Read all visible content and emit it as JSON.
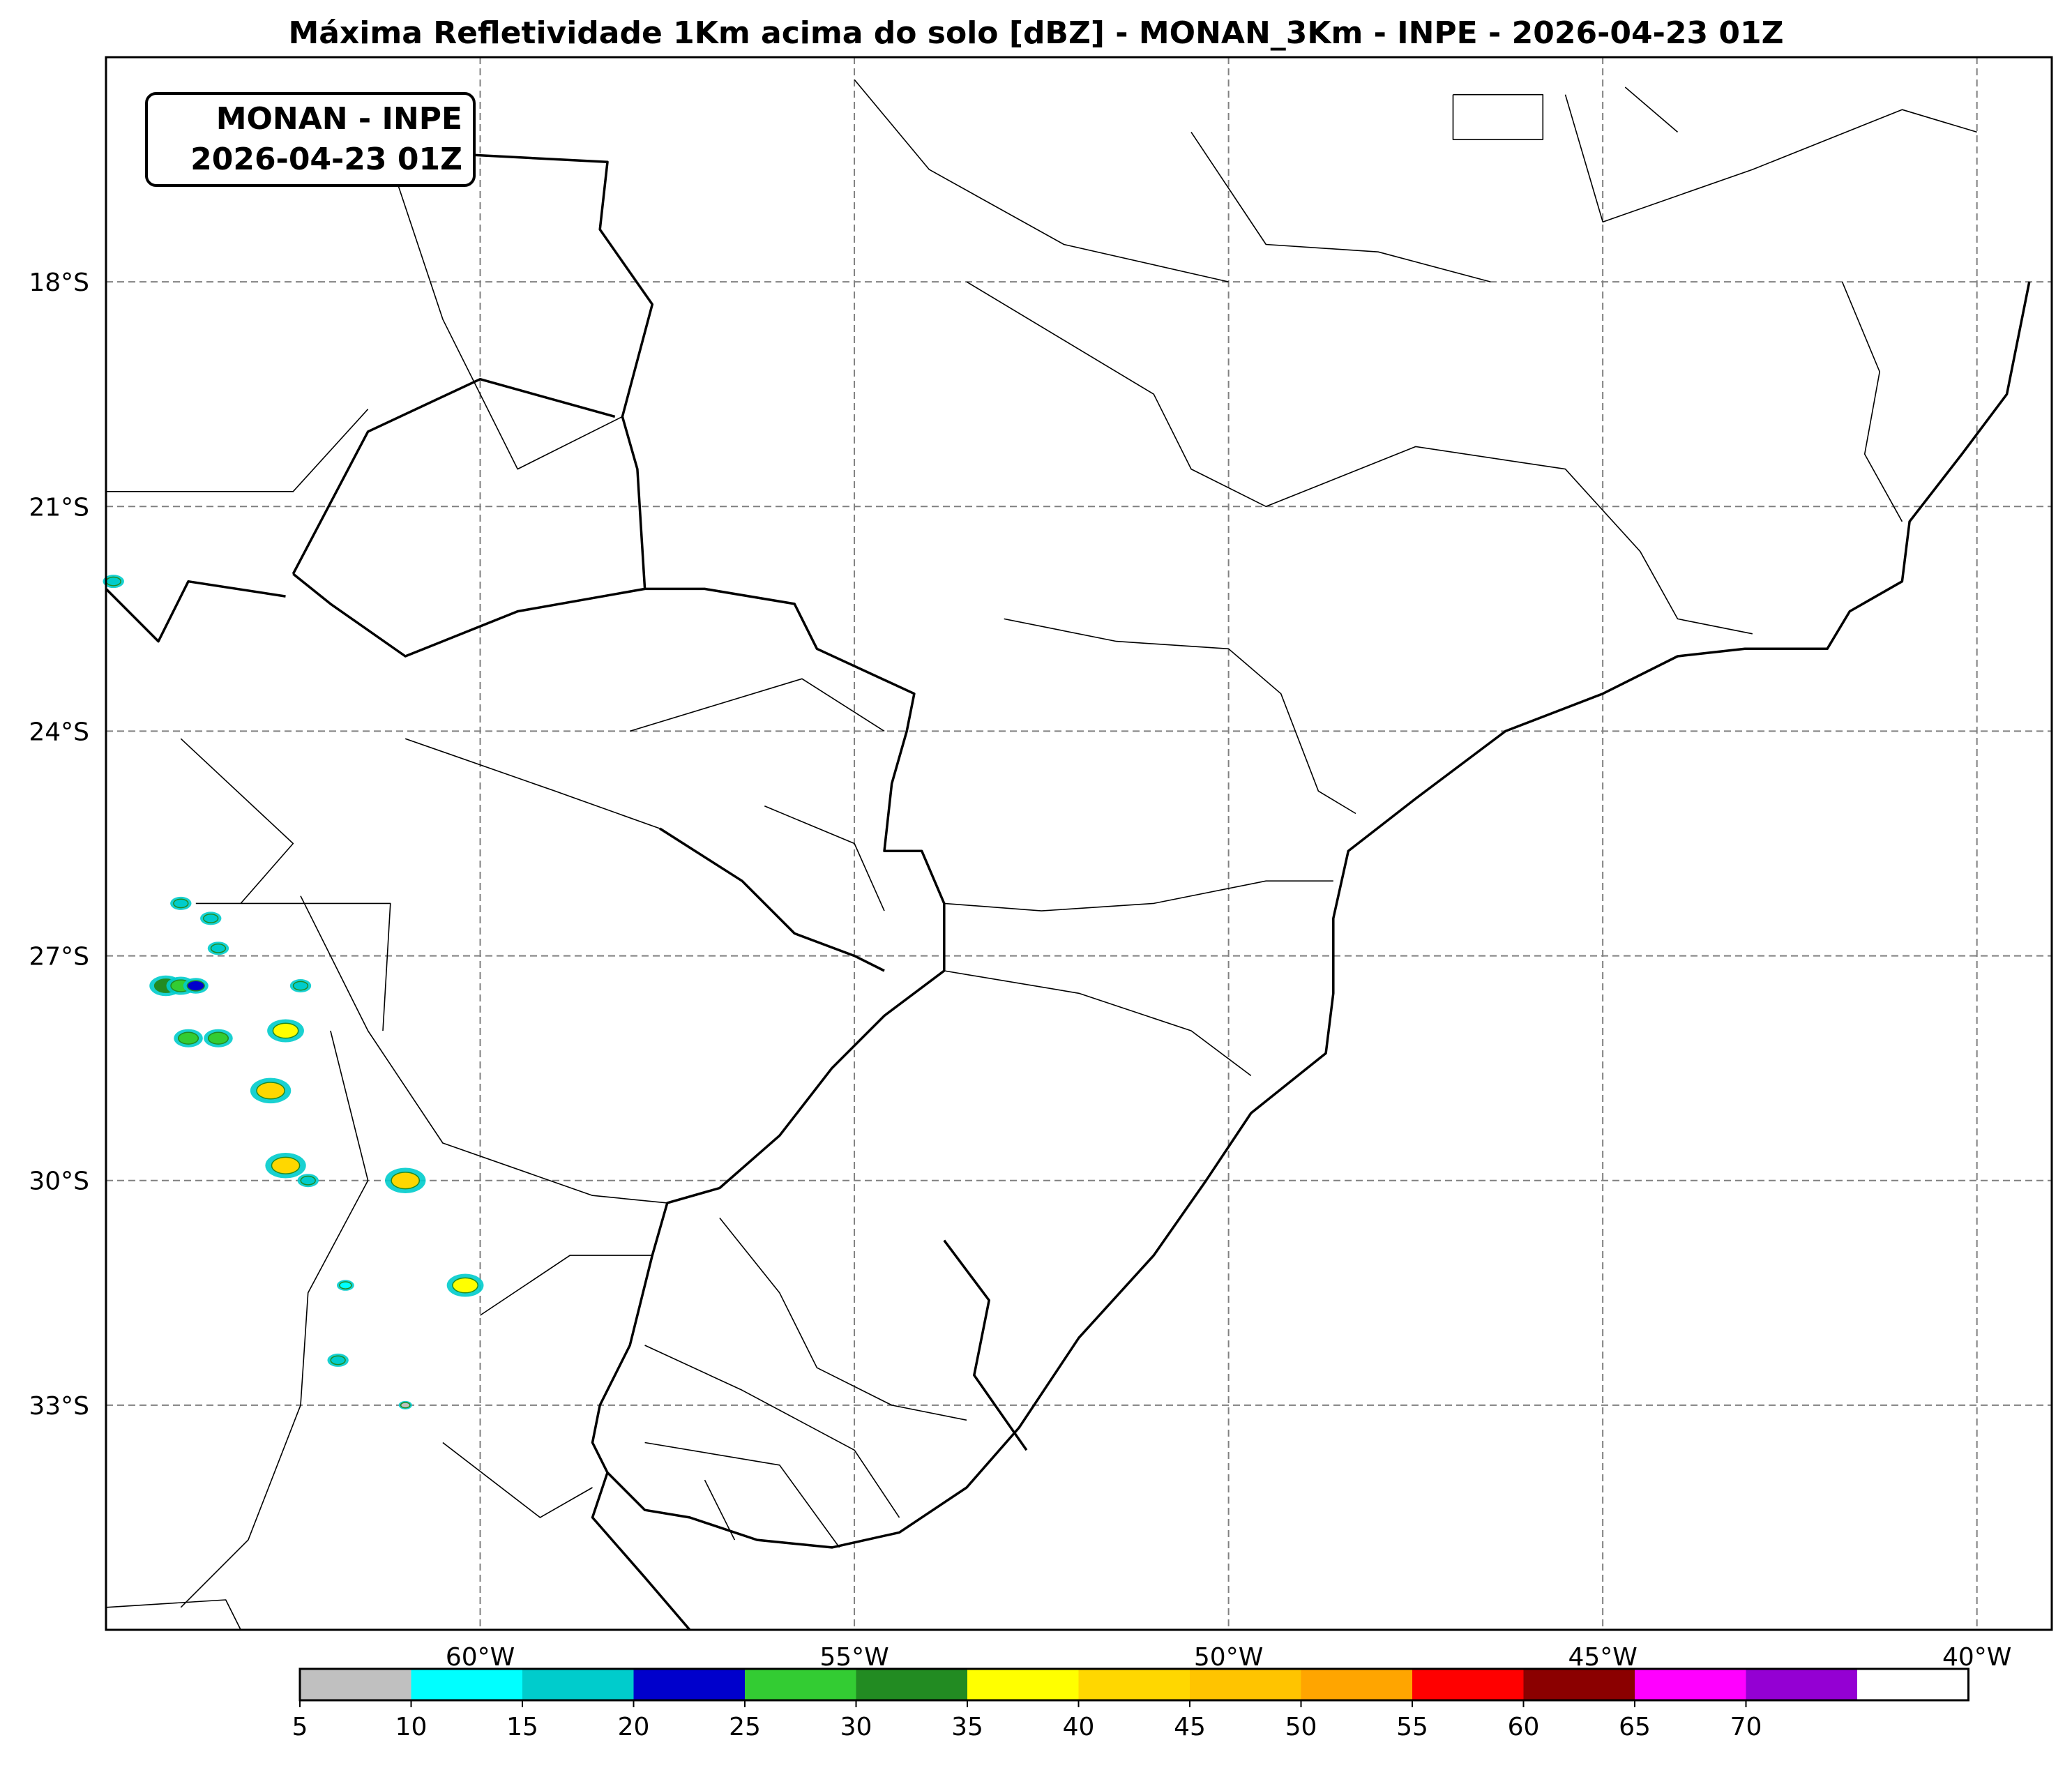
{
  "title": "Máxima Refletividade 1Km acima do solo [dBZ] - MONAN_3Km - INPE - 2026-04-23 01Z",
  "label_box": {
    "line1": "MONAN - INPE",
    "line2": "2026-04-23 01Z"
  },
  "map": {
    "lon_range": [
      -65,
      -39
    ],
    "lat_range": [
      -15,
      -36
    ],
    "lat_ticks": [
      {
        "value": -18,
        "label": "18°S"
      },
      {
        "value": -21,
        "label": "21°S"
      },
      {
        "value": -24,
        "label": "24°S"
      },
      {
        "value": -27,
        "label": "27°S"
      },
      {
        "value": -30,
        "label": "30°S"
      },
      {
        "value": -33,
        "label": "33°S"
      }
    ],
    "lon_ticks": [
      {
        "value": -60,
        "label": "60°W"
      },
      {
        "value": -55,
        "label": "55°W"
      },
      {
        "value": -50,
        "label": "50°W"
      },
      {
        "value": -45,
        "label": "45°W"
      },
      {
        "value": -40,
        "label": "40°W"
      }
    ],
    "gridlines": true,
    "coastline": [
      [
        -39.3,
        -18.0
      ],
      [
        -39.6,
        -19.5
      ],
      [
        -40.2,
        -20.3
      ],
      [
        -40.9,
        -21.2
      ],
      [
        -41.0,
        -22.0
      ],
      [
        -41.7,
        -22.4
      ],
      [
        -42.0,
        -22.9
      ],
      [
        -43.1,
        -22.9
      ],
      [
        -44.0,
        -23.0
      ],
      [
        -45.0,
        -23.5
      ],
      [
        -46.3,
        -24.0
      ],
      [
        -47.5,
        -24.9
      ],
      [
        -48.4,
        -25.6
      ],
      [
        -48.6,
        -26.5
      ],
      [
        -48.6,
        -27.5
      ],
      [
        -48.7,
        -28.3
      ],
      [
        -49.7,
        -29.1
      ],
      [
        -50.3,
        -30.0
      ],
      [
        -51.0,
        -31.0
      ],
      [
        -52.0,
        -32.1
      ],
      [
        -52.8,
        -33.3
      ],
      [
        -53.5,
        -34.1
      ],
      [
        -54.4,
        -34.7
      ],
      [
        -55.3,
        -34.9
      ],
      [
        -56.3,
        -34.8
      ],
      [
        -57.2,
        -34.5
      ],
      [
        -57.8,
        -34.4
      ],
      [
        -58.3,
        -33.9
      ],
      [
        -58.5,
        -33.5
      ],
      [
        -58.4,
        -33.0
      ]
    ],
    "borders": [
      [
        [
          -58.4,
          -33.0
        ],
        [
          -58.0,
          -32.2
        ],
        [
          -57.7,
          -31.0
        ],
        [
          -57.5,
          -30.3
        ],
        [
          -56.8,
          -30.1
        ],
        [
          -56.0,
          -29.4
        ],
        [
          -55.3,
          -28.5
        ],
        [
          -54.6,
          -27.8
        ],
        [
          -53.8,
          -27.2
        ],
        [
          -53.8,
          -26.3
        ],
        [
          -54.1,
          -25.6
        ],
        [
          -54.6,
          -25.6
        ],
        [
          -54.5,
          -24.7
        ],
        [
          -54.3,
          -24.0
        ],
        [
          -54.2,
          -23.5
        ],
        [
          -55.5,
          -22.9
        ],
        [
          -55.8,
          -22.3
        ],
        [
          -57.0,
          -22.1
        ],
        [
          -57.8,
          -22.1
        ],
        [
          -57.9,
          -20.5
        ],
        [
          -58.1,
          -19.8
        ],
        [
          -57.7,
          -18.3
        ],
        [
          -58.4,
          -17.3
        ],
        [
          -58.3,
          -16.4
        ],
        [
          -60.2,
          -16.3
        ]
      ],
      [
        [
          -57.8,
          -22.1
        ],
        [
          -59.5,
          -22.4
        ],
        [
          -61.0,
          -23.0
        ],
        [
          -62.0,
          -22.3
        ],
        [
          -62.5,
          -21.9
        ]
      ],
      [
        [
          -57.6,
          -25.3
        ],
        [
          -56.5,
          -26.0
        ],
        [
          -55.8,
          -26.7
        ],
        [
          -55.0,
          -27.0
        ],
        [
          -54.6,
          -27.2
        ]
      ],
      [
        [
          -53.8,
          -30.8
        ],
        [
          -53.2,
          -31.6
        ],
        [
          -53.4,
          -32.6
        ],
        [
          -52.7,
          -33.6
        ]
      ],
      [
        [
          -58.3,
          -33.9
        ],
        [
          -58.5,
          -34.5
        ],
        [
          -57.8,
          -35.3
        ],
        [
          -57.2,
          -36.0
        ]
      ],
      [
        [
          -62.5,
          -21.9
        ],
        [
          -61.5,
          -20.0
        ],
        [
          -60.0,
          -19.3
        ],
        [
          -58.2,
          -19.8
        ]
      ],
      [
        [
          -65.0,
          -22.1
        ],
        [
          -64.3,
          -22.8
        ],
        [
          -63.9,
          -22.0
        ],
        [
          -62.6,
          -22.2
        ]
      ]
    ],
    "states": [
      [
        [
          -53.5,
          -18.0
        ],
        [
          -51.0,
          -19.5
        ],
        [
          -50.5,
          -20.5
        ],
        [
          -49.5,
          -21.0
        ],
        [
          -47.5,
          -20.2
        ],
        [
          -45.5,
          -20.5
        ],
        [
          -44.5,
          -21.6
        ],
        [
          -44.0,
          -22.5
        ],
        [
          -43.0,
          -22.7
        ]
      ],
      [
        [
          -53.0,
          -22.5
        ],
        [
          -51.5,
          -22.8
        ],
        [
          -50.0,
          -22.9
        ],
        [
          -49.3,
          -23.5
        ],
        [
          -48.8,
          -24.8
        ],
        [
          -48.3,
          -25.1
        ]
      ],
      [
        [
          -53.8,
          -26.3
        ],
        [
          -52.5,
          -26.4
        ],
        [
          -51.0,
          -26.3
        ],
        [
          -49.5,
          -26.0
        ],
        [
          -48.6,
          -26.0
        ]
      ],
      [
        [
          -53.8,
          -27.2
        ],
        [
          -52.0,
          -27.5
        ],
        [
          -50.5,
          -28.0
        ],
        [
          -49.7,
          -28.6
        ]
      ],
      [
        [
          -50.5,
          -16.0
        ],
        [
          -49.5,
          -17.5
        ],
        [
          -48.0,
          -17.6
        ],
        [
          -46.5,
          -18.0
        ]
      ],
      [
        [
          -45.5,
          -15.5
        ],
        [
          -45.0,
          -17.2
        ],
        [
          -43.0,
          -16.5
        ],
        [
          -41.0,
          -15.7
        ],
        [
          -40.0,
          -16.0
        ]
      ],
      [
        [
          -41.8,
          -18.0
        ],
        [
          -41.3,
          -19.2
        ],
        [
          -41.5,
          -20.3
        ],
        [
          -41.0,
          -21.2
        ]
      ],
      [
        [
          -55.0,
          -15.3
        ],
        [
          -54.0,
          -16.5
        ],
        [
          -52.2,
          -17.5
        ],
        [
          -50.0,
          -18.0
        ]
      ],
      [
        [
          -61.5,
          -15.5
        ],
        [
          -60.5,
          -18.5
        ],
        [
          -59.5,
          -20.5
        ],
        [
          -58.1,
          -19.8
        ]
      ],
      [
        [
          -65.0,
          -20.8
        ],
        [
          -62.5,
          -20.8
        ],
        [
          -61.5,
          -19.7
        ]
      ],
      [
        [
          -61.0,
          -24.1
        ],
        [
          -59.0,
          -24.8
        ],
        [
          -57.6,
          -25.3
        ]
      ],
      [
        [
          -62.4,
          -26.2
        ],
        [
          -61.5,
          -28.0
        ],
        [
          -60.5,
          -29.5
        ],
        [
          -58.5,
          -30.2
        ],
        [
          -57.5,
          -30.3
        ]
      ],
      [
        [
          -63.8,
          -26.3
        ],
        [
          -61.2,
          -26.3
        ],
        [
          -61.3,
          -28.0
        ]
      ],
      [
        [
          -62.0,
          -28.0
        ],
        [
          -61.5,
          -30.0
        ],
        [
          -62.3,
          -31.5
        ],
        [
          -62.4,
          -33.0
        ],
        [
          -63.1,
          -34.8
        ],
        [
          -64.0,
          -35.7
        ]
      ],
      [
        [
          -64.0,
          -24.1
        ],
        [
          -62.5,
          -25.5
        ],
        [
          -63.2,
          -26.3
        ]
      ],
      [
        [
          -58.0,
          -24.0
        ],
        [
          -55.7,
          -23.3
        ],
        [
          -54.6,
          -24.0
        ]
      ],
      [
        [
          -56.2,
          -25.0
        ],
        [
          -55.0,
          -25.5
        ],
        [
          -54.6,
          -26.4
        ]
      ],
      [
        [
          -56.8,
          -30.5
        ],
        [
          -56.0,
          -31.5
        ],
        [
          -55.5,
          -32.5
        ],
        [
          -54.5,
          -33.0
        ],
        [
          -53.5,
          -33.2
        ]
      ],
      [
        [
          -57.8,
          -32.2
        ],
        [
          -56.5,
          -32.8
        ],
        [
          -55.0,
          -33.6
        ],
        [
          -54.4,
          -34.5
        ]
      ],
      [
        [
          -57.8,
          -33.5
        ],
        [
          -56.0,
          -33.8
        ],
        [
          -55.2,
          -34.9
        ]
      ],
      [
        [
          -57.0,
          -34.0
        ],
        [
          -56.6,
          -34.8
        ]
      ],
      [
        [
          -60.0,
          -31.8
        ],
        [
          -58.8,
          -31.0
        ],
        [
          -57.7,
          -31.0
        ]
      ],
      [
        [
          -60.5,
          -33.5
        ],
        [
          -59.2,
          -34.5
        ],
        [
          -58.5,
          -34.1
        ]
      ],
      [
        [
          -65.0,
          -35.7
        ],
        [
          -63.4,
          -35.6
        ],
        [
          -63.2,
          -36.5
        ]
      ],
      [
        [
          -44.0,
          -16.0
        ],
        [
          -44.7,
          -15.4
        ]
      ],
      [
        [
          -47.0,
          -15.5
        ],
        [
          -45.8,
          -15.5
        ],
        [
          -45.8,
          -16.1
        ],
        [
          -47.0,
          -16.1
        ],
        [
          -47.0,
          -15.5
        ]
      ]
    ],
    "reflectivity_cells": [
      {
        "lon": -64.2,
        "lat": -27.4,
        "dbz": 30
      },
      {
        "lon": -64.0,
        "lat": -27.4,
        "dbz": 25
      },
      {
        "lon": -63.8,
        "lat": -27.4,
        "dbz": 20
      },
      {
        "lon": -62.4,
        "lat": -27.4,
        "dbz": 15
      },
      {
        "lon": -63.5,
        "lat": -26.9,
        "dbz": 15
      },
      {
        "lon": -63.9,
        "lat": -28.1,
        "dbz": 25
      },
      {
        "lon": -63.5,
        "lat": -28.1,
        "dbz": 25
      },
      {
        "lon": -62.6,
        "lat": -28.0,
        "dbz": 35
      },
      {
        "lon": -62.8,
        "lat": -28.8,
        "dbz": 40
      },
      {
        "lon": -62.6,
        "lat": -29.8,
        "dbz": 40
      },
      {
        "lon": -62.3,
        "lat": -30.0,
        "dbz": 15
      },
      {
        "lon": -61.0,
        "lat": -30.0,
        "dbz": 40
      },
      {
        "lon": -60.2,
        "lat": -31.4,
        "dbz": 35
      },
      {
        "lon": -61.8,
        "lat": -31.4,
        "dbz": 10
      },
      {
        "lon": -61.9,
        "lat": -32.4,
        "dbz": 15
      },
      {
        "lon": -64.0,
        "lat": -26.3,
        "dbz": 15
      },
      {
        "lon": -63.6,
        "lat": -26.5,
        "dbz": 15
      },
      {
        "lon": -64.9,
        "lat": -22.0,
        "dbz": 15
      },
      {
        "lon": -61.0,
        "lat": -33.0,
        "dbz": 5
      }
    ]
  },
  "colorbar": {
    "bounds": [
      5,
      10,
      15,
      20,
      25,
      30,
      35,
      40,
      45,
      50,
      55,
      60,
      65,
      70
    ],
    "colors": [
      "#c0c0c0",
      "#00ffff",
      "#00cccc",
      "#0000cc",
      "#33cc33",
      "#228b22",
      "#ffff00",
      "#ffd700",
      "#ffc400",
      "#ffa500",
      "#ff0000",
      "#8b0000",
      "#ff00ff",
      "#9400d3",
      "#ffffff"
    ]
  }
}
